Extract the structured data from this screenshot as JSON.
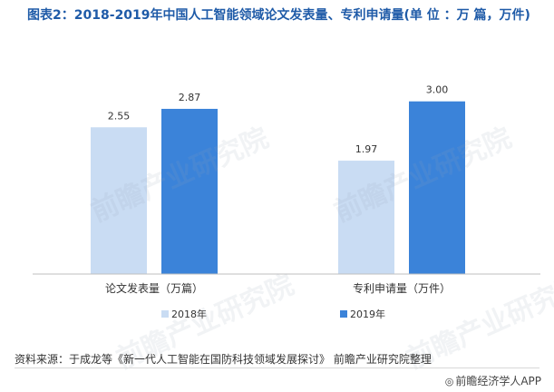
{
  "title": "图表2：2018-2019年中国人工智能领域论文发表量、专利申请量(单 位 ：万 篇，万件)",
  "source": "资料来源：于成龙等《新一代人工智能在国防科技领域发展探讨》 前瞻产业研究院整理",
  "brand": "前瞻经济学人APP",
  "watermark": "前瞻产业研究院",
  "chart_data": {
    "type": "bar",
    "categories": [
      "论文发表量（万篇）",
      "专利申请量（万件）"
    ],
    "series": [
      {
        "name": "2018年",
        "values": [
          2.55,
          1.97
        ],
        "labels": [
          "2.55",
          "1.97"
        ],
        "color": "#c9dcf3"
      },
      {
        "name": "2019年",
        "values": [
          2.87,
          3.0
        ],
        "labels": [
          "2.87",
          "3.00"
        ],
        "color": "#3b83d9"
      }
    ],
    "ylim": [
      0,
      3.5
    ],
    "grid": false,
    "legend": "bottom"
  }
}
